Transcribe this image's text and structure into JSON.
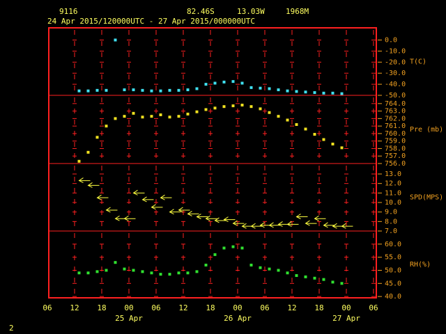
{
  "header": {
    "station": "9116",
    "latitude": "82.46S",
    "longitude": "13.03W",
    "elevation": "1968M",
    "period": "24 Apr 2015/120000UTC - 27 Apr 2015/000000UTC",
    "corner_label": "2"
  },
  "xaxis": {
    "xlim": [
      6,
      78
    ],
    "xticks": [
      {
        "value": 6,
        "label": "06"
      },
      {
        "value": 12,
        "label": "12"
      },
      {
        "value": 18,
        "label": "18"
      },
      {
        "value": 24,
        "label": "00"
      },
      {
        "value": 30,
        "label": "06"
      },
      {
        "value": 36,
        "label": "12"
      },
      {
        "value": 42,
        "label": "18"
      },
      {
        "value": 48,
        "label": "00"
      },
      {
        "value": 54,
        "label": "06"
      },
      {
        "value": 60,
        "label": "12"
      },
      {
        "value": 66,
        "label": "18"
      },
      {
        "value": 72,
        "label": "00"
      },
      {
        "value": 78,
        "label": "06"
      }
    ],
    "day_labels": [
      {
        "value": 24,
        "label": "25 Apr"
      },
      {
        "value": 48,
        "label": "26 Apr"
      },
      {
        "value": 72,
        "label": "27 Apr"
      }
    ]
  },
  "chart_data": [
    {
      "type": "scatter",
      "ylabel": "T(C)",
      "color": "#40e0f0",
      "x": [
        13,
        15,
        17,
        19,
        21,
        23,
        25,
        27,
        29,
        31,
        33,
        35,
        37,
        39,
        41,
        43,
        45,
        47,
        49,
        51,
        53,
        55,
        57,
        59,
        61,
        63,
        65,
        67,
        69,
        71
      ],
      "values": [
        -46,
        -46,
        -45.5,
        -45.5,
        0,
        -45,
        -45,
        -45.5,
        -46,
        -46,
        -45.5,
        -45.5,
        -45,
        -44,
        -40,
        -39,
        -38,
        -37.5,
        -39,
        -43,
        -43.5,
        -44,
        -45,
        -46,
        -46.5,
        -47,
        -47.5,
        -48,
        -48,
        -48.5
      ],
      "ylim": [
        -50,
        11
      ],
      "yticks": [
        {
          "value": 0,
          "label": "0.0"
        },
        {
          "value": -10,
          "label": "-10.0"
        },
        {
          "value": -20,
          "label": "-20.0"
        },
        {
          "value": -30,
          "label": "-30.0"
        },
        {
          "value": -40,
          "label": "-40.0"
        },
        {
          "value": -50,
          "label": "-50.0"
        }
      ]
    },
    {
      "type": "scatter",
      "ylabel": "Pre (mb)",
      "color": "#f0e020",
      "x": [
        13,
        15,
        17,
        19,
        21,
        23,
        25,
        27,
        29,
        31,
        33,
        35,
        37,
        39,
        41,
        43,
        45,
        47,
        49,
        51,
        53,
        55,
        57,
        59,
        61,
        63,
        65,
        67,
        69,
        71
      ],
      "values": [
        756.3,
        757.5,
        759.5,
        761,
        762,
        762.3,
        762.7,
        762.2,
        762.3,
        762.5,
        762.2,
        762.3,
        762.6,
        762.9,
        763.2,
        763.4,
        763.6,
        763.7,
        763.8,
        763.6,
        763.3,
        762.8,
        762.3,
        761.8,
        761.2,
        760.6,
        759.9,
        759.2,
        758.6,
        758.1
      ],
      "ylim": [
        756,
        765.1
      ],
      "yticks": [
        {
          "value": 764,
          "label": "764.0"
        },
        {
          "value": 763,
          "label": "763.0"
        },
        {
          "value": 762,
          "label": "762.0"
        },
        {
          "value": 761,
          "label": "761.0"
        },
        {
          "value": 760,
          "label": "760.0"
        },
        {
          "value": 759,
          "label": "759.0"
        },
        {
          "value": 758,
          "label": "758.0"
        },
        {
          "value": 757,
          "label": "757.0"
        },
        {
          "value": 756,
          "label": "756.0"
        }
      ]
    },
    {
      "type": "barb",
      "ylabel": "SPD(MPS)",
      "color": "#ffff40",
      "x": [
        13,
        15,
        17,
        19,
        21,
        23,
        25,
        27,
        29,
        31,
        33,
        35,
        37,
        39,
        41,
        43,
        45,
        47,
        49,
        51,
        53,
        55,
        57,
        59,
        61,
        63,
        65,
        67,
        69,
        71
      ],
      "values": [
        12.3,
        11.8,
        10.5,
        9.2,
        8.3,
        8.3,
        11,
        10.3,
        9.5,
        10.5,
        9,
        9.2,
        8.8,
        8.5,
        8.3,
        8.1,
        8.2,
        7.8,
        7.5,
        7.5,
        7.6,
        7.6,
        7.7,
        7.7,
        8.5,
        7.8,
        8.3,
        7.6,
        7.5,
        7.5
      ],
      "ylim": [
        7,
        14.1
      ],
      "yticks": [
        {
          "value": 13,
          "label": "13.0"
        },
        {
          "value": 12,
          "label": "12.0"
        },
        {
          "value": 11,
          "label": "11.0"
        },
        {
          "value": 10,
          "label": "10.0"
        },
        {
          "value": 9,
          "label": "9.0"
        },
        {
          "value": 8,
          "label": "8.0"
        },
        {
          "value": 7,
          "label": "7.0"
        }
      ]
    },
    {
      "type": "scatter",
      "ylabel": "RH(%)",
      "color": "#30e030",
      "x": [
        13,
        15,
        17,
        19,
        21,
        23,
        25,
        27,
        29,
        31,
        33,
        35,
        37,
        39,
        41,
        43,
        45,
        47,
        49,
        51,
        53,
        55,
        57,
        59,
        61,
        63,
        65,
        67,
        69,
        71
      ],
      "values": [
        49,
        49,
        49.5,
        50,
        53,
        50.5,
        50,
        49.5,
        49,
        48.5,
        48.5,
        49,
        49,
        49.5,
        52,
        56,
        58.5,
        59,
        58.5,
        52,
        51,
        50.5,
        50,
        49,
        48,
        47.5,
        47,
        46.5,
        45.5,
        45
      ],
      "ylim": [
        39.5,
        65
      ],
      "yticks": [
        {
          "value": 60,
          "label": "60.0"
        },
        {
          "value": 55,
          "label": "55.0"
        },
        {
          "value": 50,
          "label": "50.0"
        },
        {
          "value": 45,
          "label": "45.0"
        },
        {
          "value": 40,
          "label": "40.0"
        }
      ]
    }
  ]
}
